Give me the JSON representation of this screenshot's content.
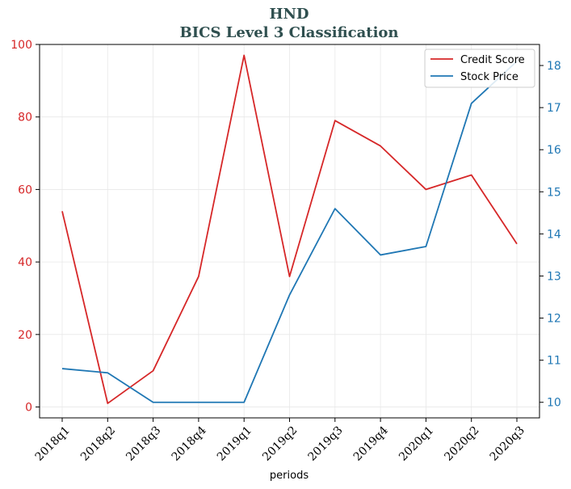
{
  "chart_data": {
    "type": "line",
    "title": "HND",
    "subtitle": "BICS Level 3 Classification",
    "xlabel": "periods",
    "categories": [
      "2018q1",
      "2018q2",
      "2018q3",
      "2018q4",
      "2019q1",
      "2019q2",
      "2019q3",
      "2019q4",
      "2020q1",
      "2020q2",
      "2020q3"
    ],
    "series": [
      {
        "name": "Credit Score",
        "axis": "left",
        "color": "#d62728",
        "values": [
          54,
          1,
          10,
          36,
          97,
          36,
          79,
          72,
          60,
          64,
          45
        ]
      },
      {
        "name": "Stock Price",
        "axis": "right",
        "color": "#1f77b4",
        "values": [
          10.8,
          10.7,
          10.0,
          10.0,
          10.0,
          12.55,
          14.6,
          13.5,
          13.7,
          17.1,
          18.1
        ]
      }
    ],
    "y_left": {
      "ylim": [
        -3,
        100
      ],
      "ticks": [
        0,
        20,
        40,
        60,
        80,
        100
      ],
      "color": "#d62728"
    },
    "y_right": {
      "ylim": [
        9.63,
        18.5
      ],
      "ticks": [
        10,
        11,
        12,
        13,
        14,
        15,
        16,
        17,
        18
      ],
      "color": "#1f77b4"
    },
    "grid": true,
    "legend": "top-right"
  }
}
